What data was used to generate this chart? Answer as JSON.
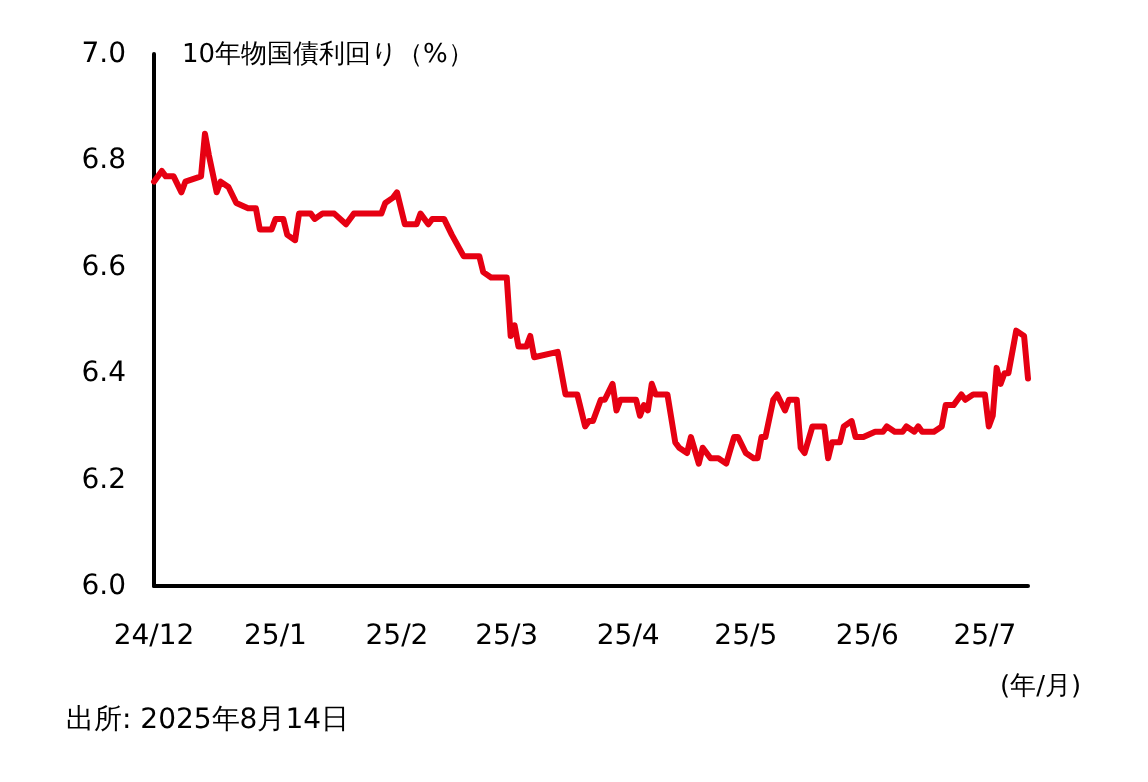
{
  "chart_data": {
    "type": "line",
    "ylabel": "10年物国債利回り（%）",
    "xlabel": "(年/月)",
    "annotations": [
      "出所: 2025年8月14日"
    ],
    "x": [
      "2024-12-01",
      "2024-12-03",
      "2024-12-04",
      "2024-12-06",
      "2024-12-08",
      "2024-12-09",
      "2024-12-13",
      "2024-12-14",
      "2024-12-15",
      "2024-12-17",
      "2024-12-18",
      "2024-12-20",
      "2024-12-22",
      "2024-12-25",
      "2024-12-27",
      "2024-12-28",
      "2024-12-31",
      "2025-01-01",
      "2025-01-03",
      "2025-01-04",
      "2025-01-06",
      "2025-01-07",
      "2025-01-10",
      "2025-01-11",
      "2025-01-13",
      "2025-01-16",
      "2025-01-19",
      "2025-01-21",
      "2025-01-25",
      "2025-01-28",
      "2025-01-29",
      "2025-01-31",
      "2025-02-01",
      "2025-02-03",
      "2025-02-06",
      "2025-02-07",
      "2025-02-09",
      "2025-02-10",
      "2025-02-13",
      "2025-02-15",
      "2025-02-18",
      "2025-02-21",
      "2025-02-22",
      "2025-02-23",
      "2025-02-25",
      "2025-03-01",
      "2025-03-02",
      "2025-03-03",
      "2025-03-04",
      "2025-03-06",
      "2025-03-07",
      "2025-03-08",
      "2025-03-14",
      "2025-03-16",
      "2025-03-19",
      "2025-03-21",
      "2025-03-22",
      "2025-03-23",
      "2025-03-25",
      "2025-03-26",
      "2025-03-28",
      "2025-03-29",
      "2025-03-30",
      "2025-04-03",
      "2025-04-04",
      "2025-04-05",
      "2025-04-06",
      "2025-04-07",
      "2025-04-08",
      "2025-04-11",
      "2025-04-13",
      "2025-04-14",
      "2025-04-16",
      "2025-04-17",
      "2025-04-19",
      "2025-04-20",
      "2025-04-22",
      "2025-04-24",
      "2025-04-26",
      "2025-04-28",
      "2025-04-29",
      "2025-05-01",
      "2025-05-03",
      "2025-05-04",
      "2025-05-05",
      "2025-05-06",
      "2025-05-08",
      "2025-05-09",
      "2025-05-11",
      "2025-05-12",
      "2025-05-14",
      "2025-05-15",
      "2025-05-16",
      "2025-05-18",
      "2025-05-21",
      "2025-05-22",
      "2025-05-23",
      "2025-05-25",
      "2025-05-26",
      "2025-05-28",
      "2025-05-29",
      "2025-05-31",
      "2025-06-03",
      "2025-06-05",
      "2025-06-06",
      "2025-06-08",
      "2025-06-10",
      "2025-06-11",
      "2025-06-13",
      "2025-06-14",
      "2025-06-15",
      "2025-06-18",
      "2025-06-20",
      "2025-06-21",
      "2025-06-23",
      "2025-06-25",
      "2025-06-26",
      "2025-06-28",
      "2025-07-01",
      "2025-07-02",
      "2025-07-03",
      "2025-07-04",
      "2025-07-05",
      "2025-07-06",
      "2025-07-07",
      "2025-07-09",
      "2025-07-11",
      "2025-07-12"
    ],
    "series": [
      {
        "color": "#e60012",
        "values": [
          6.76,
          6.78,
          6.77,
          6.77,
          6.74,
          6.76,
          6.77,
          6.85,
          6.81,
          6.74,
          6.76,
          6.75,
          6.72,
          6.71,
          6.71,
          6.67,
          6.67,
          6.69,
          6.69,
          6.66,
          6.65,
          6.7,
          6.7,
          6.69,
          6.7,
          6.7,
          6.68,
          6.7,
          6.7,
          6.7,
          6.72,
          6.73,
          6.74,
          6.68,
          6.68,
          6.7,
          6.68,
          6.69,
          6.69,
          6.66,
          6.62,
          6.62,
          6.62,
          6.59,
          6.58,
          6.58,
          6.47,
          6.49,
          6.45,
          6.45,
          6.47,
          6.43,
          6.44,
          6.36,
          6.36,
          6.3,
          6.31,
          6.31,
          6.35,
          6.35,
          6.38,
          6.33,
          6.35,
          6.35,
          6.32,
          6.34,
          6.33,
          6.38,
          6.36,
          6.36,
          6.27,
          6.26,
          6.25,
          6.28,
          6.23,
          6.26,
          6.24,
          6.24,
          6.23,
          6.28,
          6.28,
          6.25,
          6.24,
          6.24,
          6.28,
          6.28,
          6.35,
          6.36,
          6.33,
          6.35,
          6.35,
          6.26,
          6.25,
          6.3,
          6.3,
          6.24,
          6.27,
          6.27,
          6.3,
          6.31,
          6.28,
          6.28,
          6.29,
          6.29,
          6.3,
          6.29,
          6.29,
          6.3,
          6.29,
          6.3,
          6.29,
          6.29,
          6.3,
          6.34,
          6.34,
          6.36,
          6.35,
          6.36,
          6.36,
          6.3,
          6.32,
          6.41,
          6.38,
          6.4,
          6.4,
          6.48,
          6.47,
          6.39
        ]
      }
    ],
    "xlim": [
      "2024-12-01",
      "2025-07-12"
    ],
    "xticks": [
      {
        "value": "2024-12",
        "label": "24/12"
      },
      {
        "value": "2025-01",
        "label": "25/1"
      },
      {
        "value": "2025-02",
        "label": "25/2"
      },
      {
        "value": "2025-03",
        "label": "25/3"
      },
      {
        "value": "2025-04",
        "label": "25/4"
      },
      {
        "value": "2025-05",
        "label": "25/5"
      },
      {
        "value": "2025-06",
        "label": "25/6"
      },
      {
        "value": "2025-07",
        "label": "25/7"
      }
    ],
    "ylim": [
      6.0,
      7.0
    ],
    "yticks": [
      {
        "value": 6.0,
        "label": "6.0"
      },
      {
        "value": 6.2,
        "label": "6.2"
      },
      {
        "value": 6.4,
        "label": "6.4"
      },
      {
        "value": 6.6,
        "label": "6.6"
      },
      {
        "value": 6.8,
        "label": "6.8"
      },
      {
        "value": 7.0,
        "label": "7.0"
      }
    ],
    "grid": false,
    "marker": "none",
    "line_style": "solid"
  }
}
